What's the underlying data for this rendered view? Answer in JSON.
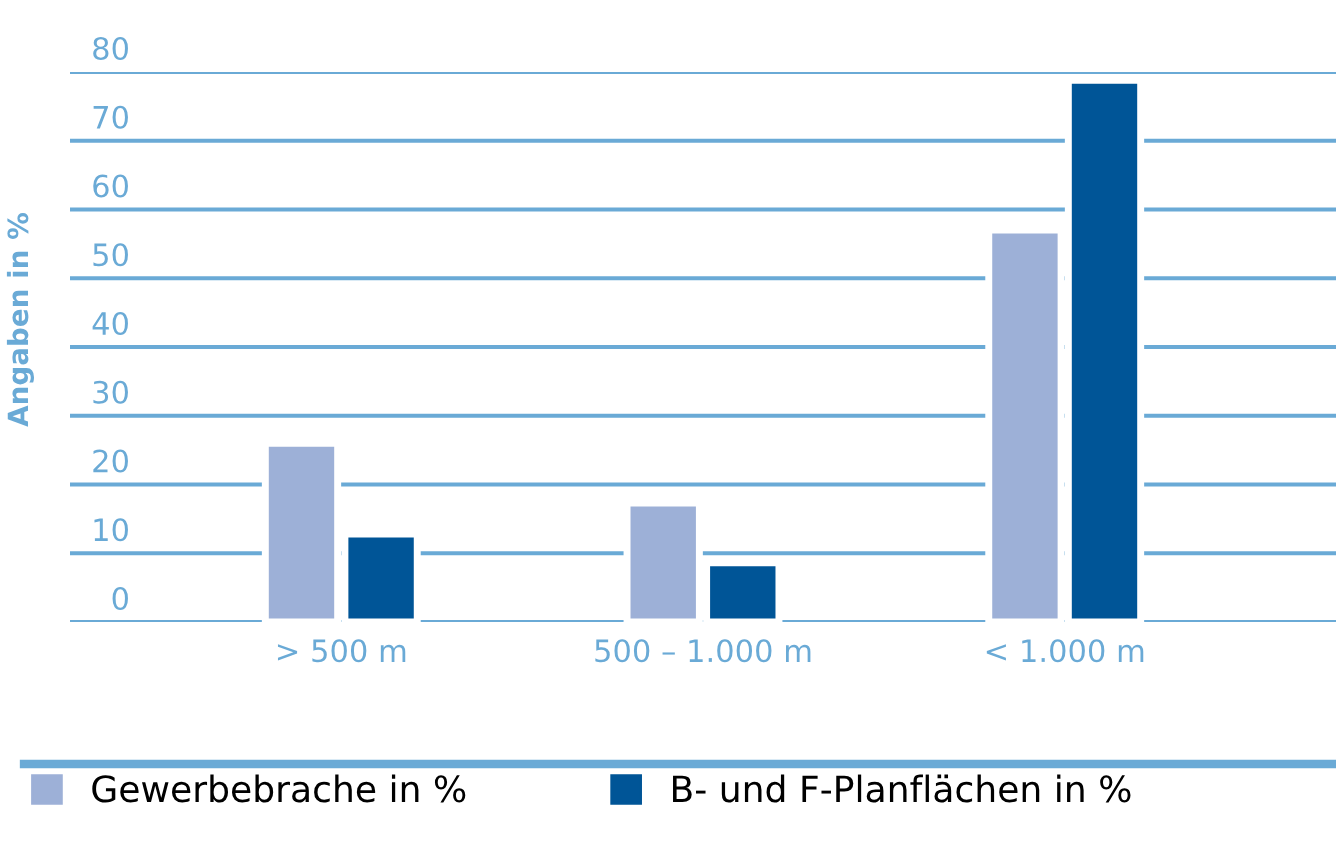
{
  "chart_data": {
    "type": "bar",
    "ylabel": "Angaben in %",
    "categories": [
      "> 500 m",
      "500 – 1.000 m",
      "< 1.000 m"
    ],
    "series": [
      {
        "name": "Gewerbebrache in %",
        "color": "#9db0d7",
        "values": [
          26,
          17.3,
          57
        ]
      },
      {
        "name": "B- und F-Planflächen in %",
        "color": "#005597",
        "values": [
          12.8,
          8.6,
          78.8
        ]
      }
    ],
    "ylim": [
      0,
      80
    ],
    "yticks": [
      0,
      10,
      20,
      30,
      40,
      50,
      60,
      70,
      80
    ],
    "grid": "y",
    "legend": "bottom"
  }
}
